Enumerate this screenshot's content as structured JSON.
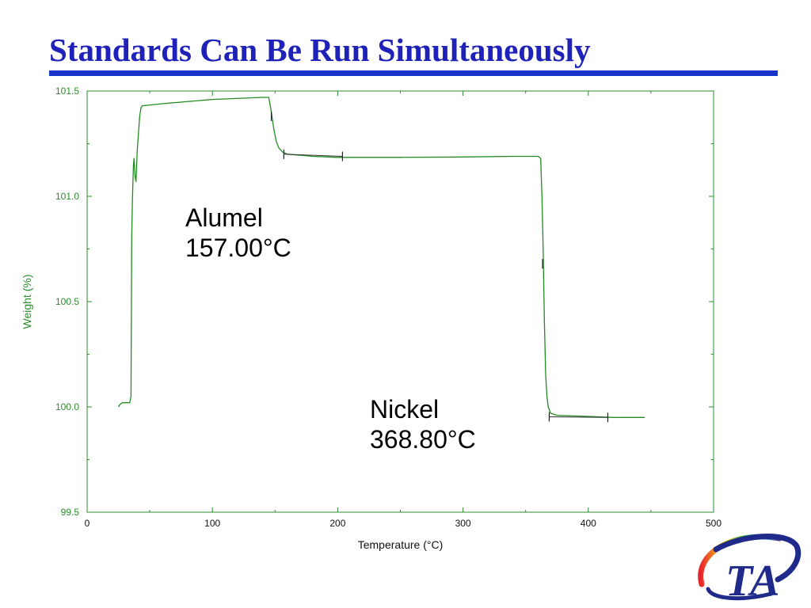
{
  "slide": {
    "title": "Standards Can Be Run Simultaneously",
    "title_color": "#1f22b8",
    "rule_color": "#1a35cc"
  },
  "colors": {
    "axis": "#2e8b2e",
    "curve": "#228b22",
    "tick_labels": "#111111"
  },
  "annotations": [
    {
      "name": "Alumel",
      "temperature": "157.00°C"
    },
    {
      "name": "Nickel",
      "temperature": "368.80°C"
    }
  ],
  "logo": {
    "text": "TA",
    "icon": "ta-instruments-logo"
  },
  "chart_data": {
    "type": "line",
    "title": "",
    "xlabel": "Temperature (°C)",
    "ylabel": "Weight (%)",
    "xlim": [
      0,
      500
    ],
    "ylim": [
      99.5,
      101.5
    ],
    "x_ticks": [
      0,
      100,
      200,
      300,
      400,
      500
    ],
    "x_tick_labels": [
      "0",
      "100",
      "200",
      "300",
      "400",
      "500"
    ],
    "y_ticks": [
      99.5,
      100.0,
      100.5,
      101.0,
      101.5
    ],
    "y_tick_labels": [
      "99.5",
      "100.0",
      "100.5",
      "101.0",
      "101.5"
    ],
    "grid": false,
    "legend": "none",
    "series": [
      {
        "points": [
          [
            25.0,
            100.0
          ],
          [
            26.0,
            100.01
          ],
          [
            28.0,
            100.02
          ],
          [
            34.0,
            100.02
          ],
          [
            35.0,
            100.05
          ],
          [
            35.6,
            100.8
          ],
          [
            36.2,
            101.0
          ],
          [
            37.0,
            101.15
          ],
          [
            37.5,
            101.18
          ],
          [
            38.2,
            101.1
          ],
          [
            39.0,
            101.07
          ],
          [
            40.0,
            101.22
          ],
          [
            42.0,
            101.38
          ],
          [
            43.0,
            101.42
          ],
          [
            44.0,
            101.43
          ],
          [
            60.0,
            101.44
          ],
          [
            100.0,
            101.46
          ],
          [
            140.0,
            101.47
          ],
          [
            145.0,
            101.47
          ],
          [
            147.0,
            101.4
          ],
          [
            149.0,
            101.32
          ],
          [
            151.0,
            101.26
          ],
          [
            153.0,
            101.23
          ],
          [
            156.0,
            101.21
          ],
          [
            160.0,
            101.2
          ],
          [
            170.0,
            101.195
          ],
          [
            180.0,
            101.19
          ],
          [
            200.0,
            101.185
          ],
          [
            250.0,
            101.185
          ],
          [
            300.0,
            101.187
          ],
          [
            340.0,
            101.19
          ],
          [
            360.0,
            101.19
          ],
          [
            362.0,
            101.18
          ],
          [
            363.0,
            101.0
          ],
          [
            364.0,
            100.75
          ],
          [
            365.0,
            100.4
          ],
          [
            366.0,
            100.15
          ],
          [
            367.0,
            100.05
          ],
          [
            368.0,
            100.0
          ],
          [
            370.0,
            99.97
          ],
          [
            375.0,
            99.96
          ],
          [
            400.0,
            99.955
          ],
          [
            420.0,
            99.95
          ],
          [
            445.0,
            99.95
          ]
        ]
      }
    ],
    "onset_markers": [
      {
        "baseline": [
          [
            157.0,
            101.2
          ],
          [
            203.8,
            101.19
          ]
        ],
        "ticks": [
          [
            147.0,
            101.38
          ],
          [
            157.0,
            101.2
          ],
          [
            203.8,
            101.19
          ]
        ]
      },
      {
        "baseline": [
          [
            368.8,
            99.953
          ],
          [
            415.6,
            99.95
          ]
        ],
        "ticks": [
          [
            363.5,
            100.68
          ],
          [
            368.8,
            99.953
          ],
          [
            415.6,
            99.95
          ]
        ]
      }
    ]
  }
}
